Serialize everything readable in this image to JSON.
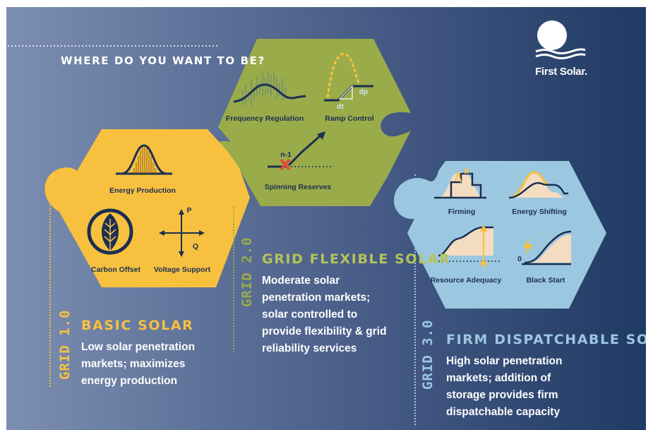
{
  "headline": "WHERE DO YOU WANT TO BE?",
  "logo": {
    "text": "First Solar."
  },
  "grid1": {
    "tag": "GRID 1.0",
    "title": "BASIC SOLAR",
    "desc": [
      "Low solar penetration",
      "markets; maximizes",
      "energy production"
    ],
    "labels": {
      "energy": "Energy Production",
      "carbon": "Carbon Offset",
      "voltage": "Voltage Support",
      "p": "P",
      "q": "Q"
    }
  },
  "grid2": {
    "tag": "GRID 2.0",
    "title": "GRID FLEXIBLE SOLAR",
    "desc": [
      "Moderate solar",
      "penetration markets;",
      "solar controlled to",
      "provide flexibility & grid",
      "reliability services"
    ],
    "labels": {
      "freq": "Frequency Regulation",
      "ramp": "Ramp Control",
      "dp": "dp",
      "dt": "dt",
      "n1": "n-1",
      "spin": "Spinning Reserves"
    }
  },
  "grid3": {
    "tag": "GRID 3.0",
    "title": "FIRM DISPATCHABLE SOLAR",
    "desc": [
      "High solar penetration",
      "markets; addition of",
      "storage provides firm",
      "dispatchable capacity"
    ],
    "labels": {
      "firming": "Firming",
      "shifting": "Energy Shifting",
      "adequacy": "Resource Adequacy",
      "blackstart": "Black Start",
      "zero": "0"
    }
  },
  "colors": {
    "grid1": "#f7c13f",
    "grid2": "#9aab4a",
    "grid3": "#9cc7e0",
    "navy": "#1b2f52",
    "red": "#e24b3b"
  }
}
